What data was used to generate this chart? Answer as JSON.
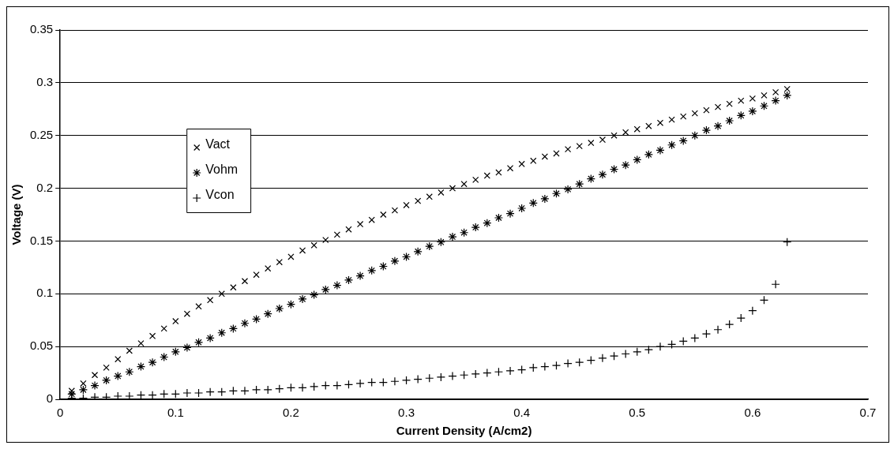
{
  "chart_data": {
    "type": "scatter",
    "xlabel": "Current Density (A/cm2)",
    "ylabel": "Voltage (V)",
    "x": [
      0.01,
      0.02,
      0.03,
      0.04,
      0.05,
      0.06,
      0.07,
      0.08,
      0.09,
      0.1,
      0.11,
      0.12,
      0.13,
      0.14,
      0.15,
      0.16,
      0.17,
      0.18,
      0.19,
      0.2,
      0.21,
      0.22,
      0.23,
      0.24,
      0.25,
      0.26,
      0.27,
      0.28,
      0.29,
      0.3,
      0.31,
      0.32,
      0.33,
      0.34,
      0.35,
      0.36,
      0.37,
      0.38,
      0.39,
      0.4,
      0.41,
      0.42,
      0.43,
      0.44,
      0.45,
      0.46,
      0.47,
      0.48,
      0.49,
      0.5,
      0.51,
      0.52,
      0.53,
      0.54,
      0.55,
      0.56,
      0.57,
      0.58,
      0.59,
      0.6,
      0.61,
      0.62,
      0.63
    ],
    "series": [
      {
        "name": "Vact",
        "color": "#000000",
        "marker": "x",
        "values": [
          0.008,
          0.015,
          0.023,
          0.03,
          0.038,
          0.046,
          0.053,
          0.06,
          0.067,
          0.074,
          0.081,
          0.088,
          0.094,
          0.1,
          0.106,
          0.112,
          0.118,
          0.124,
          0.13,
          0.135,
          0.141,
          0.146,
          0.151,
          0.156,
          0.161,
          0.166,
          0.17,
          0.175,
          0.179,
          0.184,
          0.188,
          0.192,
          0.196,
          0.2,
          0.204,
          0.208,
          0.212,
          0.215,
          0.219,
          0.223,
          0.226,
          0.23,
          0.233,
          0.237,
          0.24,
          0.243,
          0.246,
          0.25,
          0.253,
          0.256,
          0.259,
          0.262,
          0.265,
          0.268,
          0.271,
          0.274,
          0.277,
          0.28,
          0.283,
          0.285,
          0.288,
          0.291,
          0.294
        ]
      },
      {
        "name": "Vohm",
        "color": "#000000",
        "marker": "cross",
        "values": [
          0.005,
          0.009,
          0.013,
          0.018,
          0.022,
          0.026,
          0.031,
          0.035,
          0.04,
          0.045,
          0.049,
          0.054,
          0.058,
          0.063,
          0.067,
          0.072,
          0.076,
          0.081,
          0.086,
          0.09,
          0.095,
          0.099,
          0.104,
          0.108,
          0.113,
          0.117,
          0.122,
          0.126,
          0.131,
          0.135,
          0.14,
          0.145,
          0.149,
          0.154,
          0.158,
          0.163,
          0.167,
          0.172,
          0.176,
          0.181,
          0.186,
          0.19,
          0.195,
          0.199,
          0.204,
          0.209,
          0.213,
          0.218,
          0.222,
          0.227,
          0.232,
          0.236,
          0.241,
          0.245,
          0.25,
          0.255,
          0.259,
          0.264,
          0.269,
          0.273,
          0.278,
          0.283,
          0.288
        ]
      },
      {
        "name": "Vcon",
        "color": "#000000",
        "marker": "plus",
        "values": [
          0.001,
          0.001,
          0.002,
          0.002,
          0.003,
          0.003,
          0.004,
          0.004,
          0.005,
          0.005,
          0.006,
          0.006,
          0.007,
          0.007,
          0.008,
          0.008,
          0.009,
          0.009,
          0.01,
          0.011,
          0.011,
          0.012,
          0.013,
          0.013,
          0.014,
          0.015,
          0.016,
          0.016,
          0.017,
          0.018,
          0.019,
          0.02,
          0.021,
          0.022,
          0.023,
          0.024,
          0.025,
          0.026,
          0.027,
          0.028,
          0.03,
          0.031,
          0.032,
          0.034,
          0.035,
          0.037,
          0.039,
          0.041,
          0.043,
          0.045,
          0.047,
          0.05,
          0.052,
          0.055,
          0.058,
          0.062,
          0.066,
          0.071,
          0.077,
          0.084,
          0.094,
          0.109,
          0.149
        ]
      }
    ],
    "xlim": [
      0,
      0.7
    ],
    "xticks": [
      0,
      0.1,
      0.2,
      0.3,
      0.4,
      0.5,
      0.6,
      0.7
    ],
    "ylim": [
      0,
      0.35
    ],
    "yticks": [
      0,
      0.05,
      0.1,
      0.15,
      0.2,
      0.25,
      0.3,
      0.35
    ],
    "grid": "y",
    "legend": "left"
  }
}
